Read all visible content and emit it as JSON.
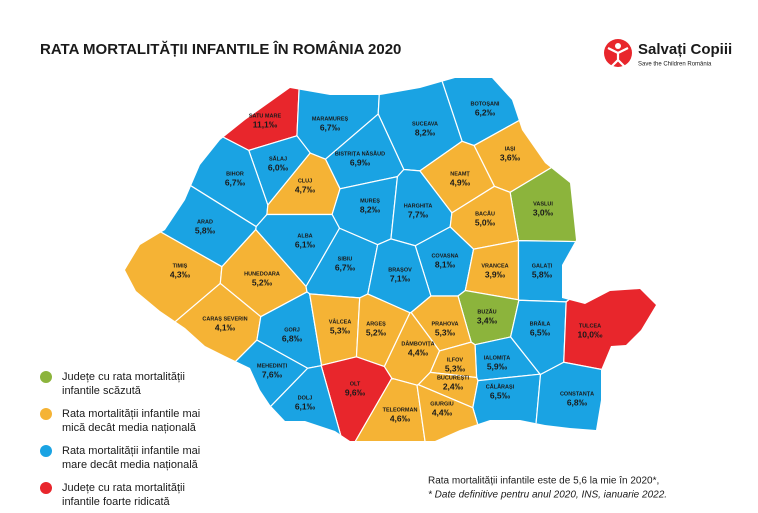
{
  "header": {
    "title": "RATA MORTALITĂȚII INFANTILE ÎN ROMÂNIA 2020",
    "logo": "Salvați Copiii",
    "logo_sub": "Save the Children România"
  },
  "legend": [
    {
      "lines": [
        "Județe cu rata mortalității",
        "infantile scăzută"
      ],
      "color": "#8cb43c"
    },
    {
      "lines": [
        "Rata mortalității infantile mai",
        "mică decât media națională"
      ],
      "color": "#f5b335"
    },
    {
      "lines": [
        "Rata mortalității infantile mai",
        "mare decât media națională"
      ],
      "color": "#1aa3e3"
    },
    {
      "lines": [
        "Județe cu rata mortalității",
        "infantile foarte ridicată"
      ],
      "color": "#e8262c"
    }
  ],
  "note": [
    "Rata mortalității infantile este de 5,6 la mie în 2020*,",
    "* Date definitive pentru anul 2020, INS, ianuarie 2022."
  ],
  "counties": [
    {
      "name": "SATU MARE",
      "rate": 11.1,
      "rate_label": "11,1‰",
      "category": 3
    },
    {
      "name": "MARAMUREȘ",
      "rate": 6.7,
      "rate_label": "6,7‰",
      "category": 2
    },
    {
      "name": "BOTOȘANI",
      "rate": 6.2,
      "rate_label": "6,2‰",
      "category": 2
    },
    {
      "name": "SUCEAVA",
      "rate": 8.2,
      "rate_label": "8,2‰",
      "category": 2
    },
    {
      "name": "IAȘI",
      "rate": 3.6,
      "rate_label": "3,6‰",
      "category": 1
    },
    {
      "name": "SĂLAJ",
      "rate": 6.0,
      "rate_label": "6,0‰",
      "category": 2
    },
    {
      "name": "BISTRIȚA NĂSĂUD",
      "rate": 6.9,
      "rate_label": "6,9‰",
      "category": 2
    },
    {
      "name": "BIHOR",
      "rate": 6.7,
      "rate_label": "6,7‰",
      "category": 2
    },
    {
      "name": "CLUJ",
      "rate": 4.7,
      "rate_label": "4,7‰",
      "category": 1
    },
    {
      "name": "NEAMȚ",
      "rate": 4.9,
      "rate_label": "4,9‰",
      "category": 1
    },
    {
      "name": "VASLUI",
      "rate": 3.0,
      "rate_label": "3,0‰",
      "category": 0
    },
    {
      "name": "MUREȘ",
      "rate": 8.2,
      "rate_label": "8,2‰",
      "category": 2
    },
    {
      "name": "HARGHITA",
      "rate": 7.7,
      "rate_label": "7,7‰",
      "category": 2
    },
    {
      "name": "BACĂU",
      "rate": 5.0,
      "rate_label": "5,0‰",
      "category": 1
    },
    {
      "name": "ARAD",
      "rate": 5.8,
      "rate_label": "5,8‰",
      "category": 2
    },
    {
      "name": "ALBA",
      "rate": 6.1,
      "rate_label": "6,1‰",
      "category": 2
    },
    {
      "name": "COVASNA",
      "rate": 8.1,
      "rate_label": "8,1‰",
      "category": 2
    },
    {
      "name": "VRANCEA",
      "rate": 3.9,
      "rate_label": "3,9‰",
      "category": 1
    },
    {
      "name": "GALAȚI",
      "rate": 5.8,
      "rate_label": "5,8‰",
      "category": 2
    },
    {
      "name": "TIMIȘ",
      "rate": 4.3,
      "rate_label": "4,3‰",
      "category": 1
    },
    {
      "name": "HUNEDOARA",
      "rate": 5.2,
      "rate_label": "5,2‰",
      "category": 1
    },
    {
      "name": "SIBIU",
      "rate": 6.7,
      "rate_label": "6,7‰",
      "category": 2
    },
    {
      "name": "BRAȘOV",
      "rate": 7.1,
      "rate_label": "7,1‰",
      "category": 2
    },
    {
      "name": "BUZĂU",
      "rate": 3.4,
      "rate_label": "3,4‰",
      "category": 0
    },
    {
      "name": "BRĂILA",
      "rate": 6.5,
      "rate_label": "6,5‰",
      "category": 2
    },
    {
      "name": "TULCEA",
      "rate": 10.0,
      "rate_label": "10,0‰",
      "category": 3
    },
    {
      "name": "CARAȘ SEVERIN",
      "rate": 4.1,
      "rate_label": "4,1‰",
      "category": 1
    },
    {
      "name": "GORJ",
      "rate": 6.8,
      "rate_label": "6,8‰",
      "category": 2
    },
    {
      "name": "VÂLCEA",
      "rate": 5.3,
      "rate_label": "5,3‰",
      "category": 1
    },
    {
      "name": "ARGEȘ",
      "rate": 5.2,
      "rate_label": "5,2‰",
      "category": 1
    },
    {
      "name": "PRAHOVA",
      "rate": 5.3,
      "rate_label": "5,3‰",
      "category": 1
    },
    {
      "name": "DÂMBOVIȚA",
      "rate": 4.4,
      "rate_label": "4,4‰",
      "category": 1
    },
    {
      "name": "MEHEDINȚI",
      "rate": 7.6,
      "rate_label": "7,6‰",
      "category": 2
    },
    {
      "name": "IALOMIȚA",
      "rate": 5.9,
      "rate_label": "5,9‰",
      "category": 2
    },
    {
      "name": "ILFOV",
      "rate": 5.3,
      "rate_label": "5,3‰",
      "category": 1
    },
    {
      "name": "BUCUREȘTI",
      "rate": 2.4,
      "rate_label": "2,4‰",
      "category": 1
    },
    {
      "name": "OLT",
      "rate": 9.6,
      "rate_label": "9,6‰",
      "category": 3
    },
    {
      "name": "DOLJ",
      "rate": 6.1,
      "rate_label": "6,1‰",
      "category": 2
    },
    {
      "name": "CĂLĂRAȘI",
      "rate": 6.5,
      "rate_label": "6,5‰",
      "category": 2
    },
    {
      "name": "CONSTANȚA",
      "rate": 6.8,
      "rate_label": "6,8‰",
      "category": 2
    },
    {
      "name": "TELEORMAN",
      "rate": 4.6,
      "rate_label": "4,6‰",
      "category": 1
    },
    {
      "name": "GIURGIU",
      "rate": 4.4,
      "rate_label": "4,4‰",
      "category": 1
    }
  ]
}
